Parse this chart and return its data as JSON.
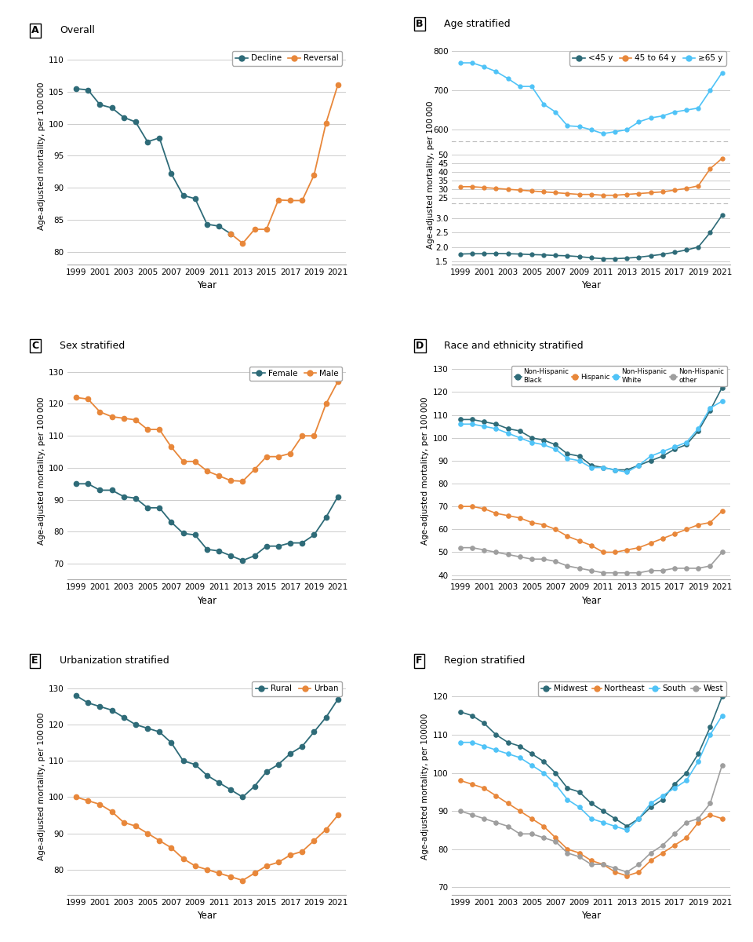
{
  "years": [
    1999,
    2000,
    2001,
    2002,
    2003,
    2004,
    2005,
    2006,
    2007,
    2008,
    2009,
    2010,
    2011,
    2012,
    2013,
    2014,
    2015,
    2016,
    2017,
    2018,
    2019,
    2020,
    2021
  ],
  "panel_A": {
    "title": "Overall",
    "label": "A",
    "ylabel": "Age-adjusted mortality, per 100 000",
    "ylim": [
      78,
      112
    ],
    "yticks": [
      80,
      85,
      90,
      95,
      100,
      105,
      110
    ],
    "decline_years": [
      1999,
      2000,
      2001,
      2002,
      2003,
      2004,
      2005,
      2006,
      2007,
      2008,
      2009,
      2010,
      2011,
      2012
    ],
    "decline_vals": [
      105.5,
      105.3,
      103.0,
      102.5,
      101.0,
      100.3,
      97.2,
      97.8,
      92.2,
      88.8,
      88.3,
      84.3,
      84.0,
      82.8
    ],
    "reversal_years": [
      2012,
      2013,
      2014,
      2015,
      2016,
      2017,
      2018,
      2019,
      2020,
      2021
    ],
    "reversal_vals": [
      82.8,
      81.3,
      83.5,
      83.5,
      88.1,
      88.0,
      88.0,
      92.0,
      100.1,
      106.1
    ],
    "legend_labels": [
      "Decline",
      "Reversal"
    ],
    "colors": [
      "#2E6B78",
      "#E8873A"
    ]
  },
  "panel_B": {
    "title": "Age stratified",
    "label": "B",
    "legend_labels": [
      "<45 y",
      "45 to 64 y",
      "≥65 y"
    ],
    "colors": [
      "#2E6B78",
      "#E8873A",
      "#4FC3F7"
    ],
    "lt45": [
      1.76,
      1.77,
      1.77,
      1.78,
      1.77,
      1.76,
      1.74,
      1.73,
      1.71,
      1.7,
      1.67,
      1.63,
      1.6,
      1.6,
      1.62,
      1.65,
      1.7,
      1.75,
      1.82,
      1.9,
      2.0,
      2.5,
      3.1
    ],
    "age45_64": [
      31.5,
      31.5,
      31.0,
      30.5,
      30.0,
      29.5,
      29.0,
      28.5,
      28.0,
      27.5,
      27.0,
      27.0,
      26.5,
      26.5,
      27.0,
      27.5,
      28.0,
      28.5,
      29.5,
      30.5,
      32.0,
      42.0,
      48.0
    ],
    "ge65": [
      770,
      770,
      760,
      748,
      730,
      710,
      710,
      665,
      645,
      610,
      608,
      600,
      590,
      595,
      600,
      620,
      630,
      635,
      645,
      650,
      655,
      700,
      745
    ]
  },
  "panel_C": {
    "title": "Sex stratified",
    "label": "C",
    "ylabel": "Age-adjusted mortality, per 100 000",
    "ylim": [
      65,
      133
    ],
    "yticks": [
      70,
      80,
      90,
      100,
      110,
      120,
      130
    ],
    "legend_labels": [
      "Female",
      "Male"
    ],
    "colors": [
      "#2E6B78",
      "#E8873A"
    ],
    "female": [
      95.0,
      95.0,
      93.0,
      93.0,
      91.0,
      90.5,
      87.5,
      87.5,
      83.0,
      79.5,
      79.0,
      74.5,
      74.0,
      72.5,
      71.0,
      72.5,
      75.5,
      75.5,
      76.5,
      76.5,
      79.0,
      84.5,
      91.0
    ],
    "male": [
      122.0,
      121.5,
      117.5,
      116.0,
      115.5,
      115.0,
      112.0,
      112.0,
      106.5,
      102.0,
      102.0,
      99.0,
      97.5,
      96.0,
      95.8,
      99.5,
      103.5,
      103.5,
      104.5,
      110.0,
      110.0,
      120.0,
      127.0
    ]
  },
  "panel_D": {
    "title": "Race and ethnicity stratified",
    "label": "D",
    "ylabel": "Age-adjusted mortality, per 100 000",
    "ylim": [
      38,
      133
    ],
    "yticks": [
      40,
      50,
      60,
      70,
      80,
      90,
      100,
      110,
      120,
      130
    ],
    "legend_labels": [
      "Non-Hispanic\nBlack",
      "Hispanic",
      "Non-Hispanic\nWhite",
      "Non-Hispanic\nother"
    ],
    "colors": [
      "#2E6B78",
      "#E8873A",
      "#4FC3F7",
      "#9E9E9E"
    ],
    "nh_black": [
      108,
      108,
      107,
      106,
      104,
      103,
      100,
      99,
      97,
      93,
      92,
      88,
      87,
      86,
      86,
      88,
      90,
      92,
      95,
      97,
      103,
      112,
      122
    ],
    "hispanic": [
      70,
      70,
      69,
      67,
      66,
      65,
      63,
      62,
      60,
      57,
      55,
      53,
      50,
      50,
      51,
      52,
      54,
      56,
      58,
      60,
      62,
      63,
      68
    ],
    "nh_white": [
      106,
      106,
      105,
      104,
      102,
      100,
      98,
      97,
      95,
      91,
      90,
      87,
      87,
      86,
      85,
      88,
      92,
      94,
      96,
      98,
      104,
      113,
      116
    ],
    "nh_other": [
      52,
      52,
      51,
      50,
      49,
      48,
      47,
      47,
      46,
      44,
      43,
      42,
      41,
      41,
      41,
      41,
      42,
      42,
      43,
      43,
      43,
      44,
      50
    ]
  },
  "panel_E": {
    "title": "Urbanization stratified",
    "label": "E",
    "ylabel": "Age-adjusted mortality, per 100 000",
    "ylim": [
      73,
      133
    ],
    "yticks": [
      80,
      90,
      100,
      110,
      120,
      130
    ],
    "legend_labels": [
      "Rural",
      "Urban"
    ],
    "colors": [
      "#2E6B78",
      "#E8873A"
    ],
    "rural": [
      128,
      126,
      125,
      124,
      122,
      120,
      119,
      118,
      115,
      110,
      109,
      106,
      104,
      102,
      100,
      103,
      107,
      109,
      112,
      114,
      118,
      122,
      127
    ],
    "urban": [
      100,
      99,
      98,
      96,
      93,
      92,
      90,
      88,
      86,
      83,
      81,
      80,
      79,
      78,
      77,
      79,
      81,
      82,
      84,
      85,
      88,
      91,
      95
    ]
  },
  "panel_F": {
    "title": "Region stratified",
    "label": "F",
    "ylabel": "Age-adjusted mortality, per 100000",
    "ylim": [
      68,
      125
    ],
    "yticks": [
      70,
      80,
      90,
      100,
      110,
      120
    ],
    "legend_labels": [
      "Midwest",
      "Northeast",
      "South",
      "West"
    ],
    "colors": [
      "#2E6B78",
      "#E8873A",
      "#4FC3F7",
      "#9E9E9E"
    ],
    "midwest": [
      116,
      115,
      113,
      110,
      108,
      107,
      105,
      103,
      100,
      96,
      95,
      92,
      90,
      88,
      86,
      88,
      91,
      93,
      97,
      100,
      105,
      112,
      120
    ],
    "northeast": [
      98,
      97,
      96,
      94,
      92,
      90,
      88,
      86,
      83,
      80,
      79,
      77,
      76,
      74,
      73,
      74,
      77,
      79,
      81,
      83,
      87,
      89,
      88
    ],
    "south": [
      108,
      108,
      107,
      106,
      105,
      104,
      102,
      100,
      97,
      93,
      91,
      88,
      87,
      86,
      85,
      88,
      92,
      94,
      96,
      98,
      103,
      110,
      115
    ],
    "west": [
      90,
      89,
      88,
      87,
      86,
      84,
      84,
      83,
      82,
      79,
      78,
      76,
      76,
      75,
      74,
      76,
      79,
      81,
      84,
      87,
      88,
      92,
      102
    ]
  },
  "dark_teal": "#2E6B78",
  "orange": "#E8873A",
  "light_blue": "#4FC3F7",
  "gray": "#9E9E9E",
  "xlabel": "Year",
  "xticks": [
    1999,
    2001,
    2003,
    2005,
    2007,
    2009,
    2011,
    2013,
    2015,
    2017,
    2019,
    2021
  ]
}
